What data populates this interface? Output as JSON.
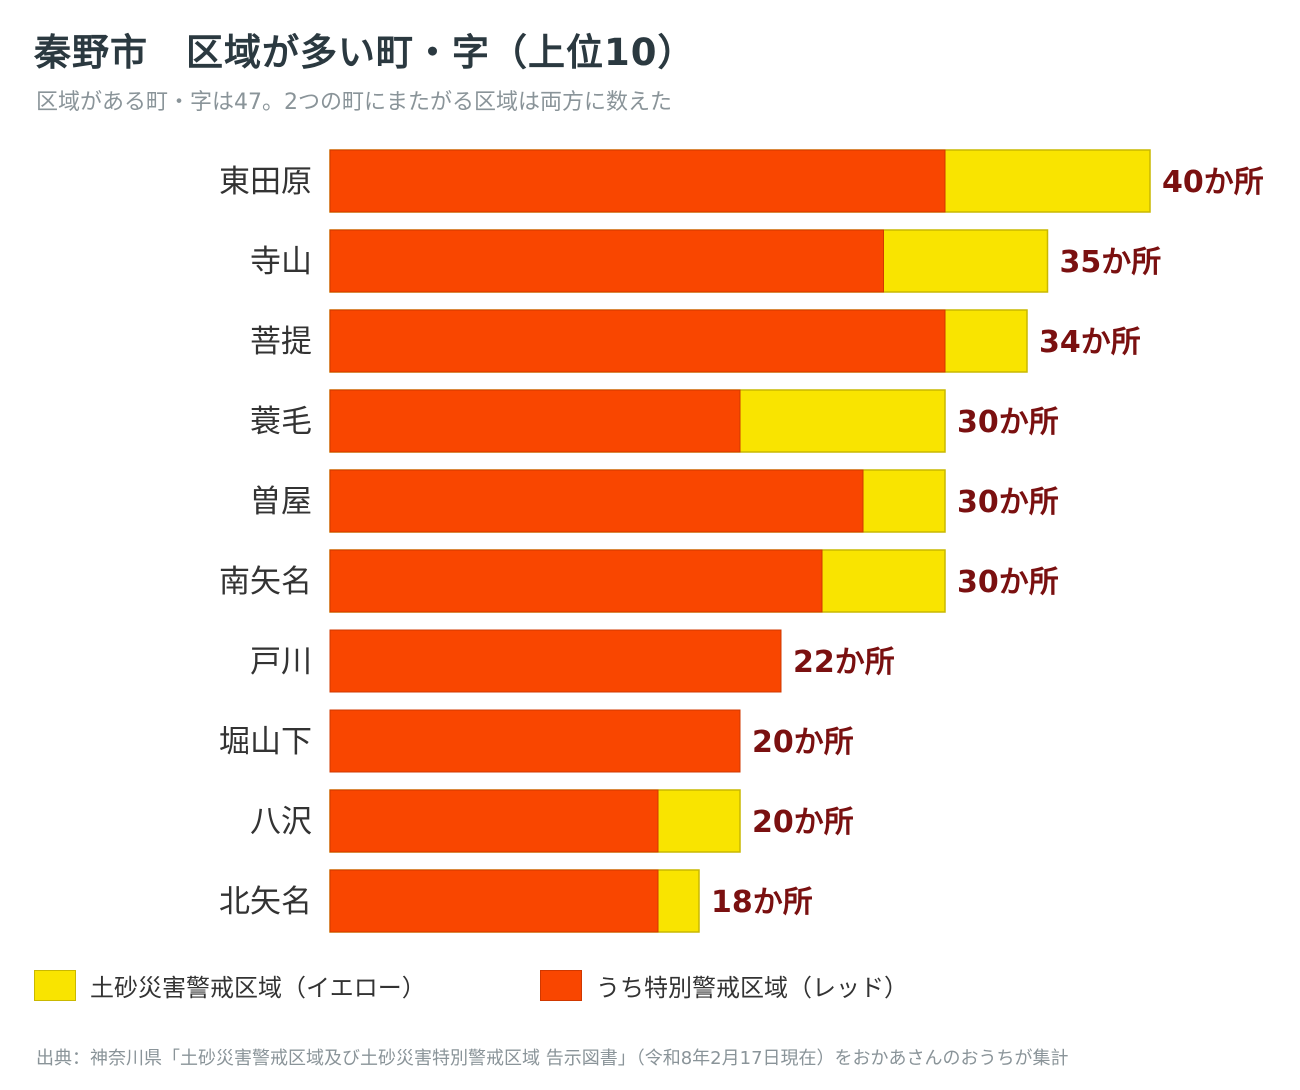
{
  "title": "秦野市　区域が多い町・字（上位10）",
  "subtitle": "区域がある町・字は47。2つの町にまたがる区域は両方に数えた",
  "colors": {
    "yellow": "#f9e400",
    "yellow_border": "#c9b800",
    "red": "#f94600",
    "red_border": "#d03800",
    "value_label": "#7a1010",
    "category_label": "#333333"
  },
  "chart_data": {
    "type": "bar",
    "orientation": "horizontal",
    "stacked": true,
    "categories": [
      "東田原",
      "寺山",
      "菩提",
      "蓑毛",
      "曽屋",
      "南矢名",
      "戸川",
      "堀山下",
      "八沢",
      "北矢名"
    ],
    "series": [
      {
        "name": "うち特別警戒区域（レッド）",
        "values": [
          30,
          27,
          30,
          20,
          26,
          24,
          22,
          20,
          16,
          16
        ]
      },
      {
        "name": "土砂災害警戒区域（イエロー）",
        "values": [
          10,
          8,
          4,
          10,
          4,
          6,
          0,
          0,
          4,
          2
        ]
      }
    ],
    "totals": [
      40,
      35,
      34,
      30,
      30,
      30,
      22,
      20,
      20,
      18
    ],
    "value_labels": [
      "40か所",
      "35か所",
      "34か所",
      "30か所",
      "30か所",
      "30か所",
      "22か所",
      "20か所",
      "20か所",
      "18か所"
    ],
    "xlim": [
      0,
      40
    ],
    "grid": false,
    "legend_position": "bottom-left"
  },
  "legend": [
    {
      "label": "土砂災害警戒区域（イエロー）",
      "color": "#f9e400"
    },
    {
      "label": "うち特別警戒区域（レッド）",
      "color": "#f94600"
    }
  ],
  "source": "出典：神奈川県「土砂災害警戒区域及び土砂災害特別警戒区域 告示図書」（令和8年2月17日現在）をおかあさんのおうちが集計"
}
